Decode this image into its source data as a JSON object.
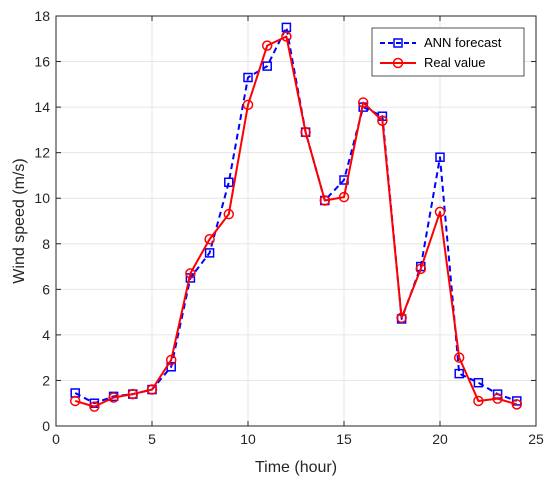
{
  "chart_data": {
    "type": "line",
    "title": "",
    "xlabel": "Time (hour)",
    "ylabel": "Wind speed (m/s)",
    "xlim": [
      0,
      25
    ],
    "ylim": [
      0,
      18
    ],
    "xticks": [
      0,
      5,
      10,
      15,
      20,
      25
    ],
    "yticks": [
      0,
      2,
      4,
      6,
      8,
      10,
      12,
      14,
      16,
      18
    ],
    "grid": true,
    "legend_position": "top-right",
    "x": [
      1,
      2,
      3,
      4,
      5,
      6,
      7,
      8,
      9,
      10,
      11,
      12,
      13,
      14,
      15,
      16,
      17,
      18,
      19,
      20,
      21,
      22,
      23,
      24
    ],
    "series": [
      {
        "name": "ANN forecast",
        "color": "#0000ff",
        "line_style": "dashed",
        "marker": "square",
        "values": [
          1.45,
          1.0,
          1.3,
          1.4,
          1.6,
          2.6,
          6.5,
          7.6,
          10.7,
          15.3,
          15.8,
          17.5,
          12.9,
          9.9,
          10.8,
          14.0,
          13.6,
          4.7,
          7.0,
          11.8,
          2.3,
          1.9,
          1.4,
          1.1
        ]
      },
      {
        "name": "Real value",
        "color": "#ff0000",
        "line_style": "solid",
        "marker": "circle",
        "values": [
          1.1,
          0.85,
          1.25,
          1.4,
          1.6,
          2.9,
          6.7,
          8.2,
          9.3,
          14.1,
          16.7,
          17.1,
          12.9,
          9.9,
          10.05,
          14.2,
          13.4,
          4.75,
          6.9,
          9.4,
          3.0,
          1.1,
          1.2,
          0.95
        ]
      }
    ]
  }
}
